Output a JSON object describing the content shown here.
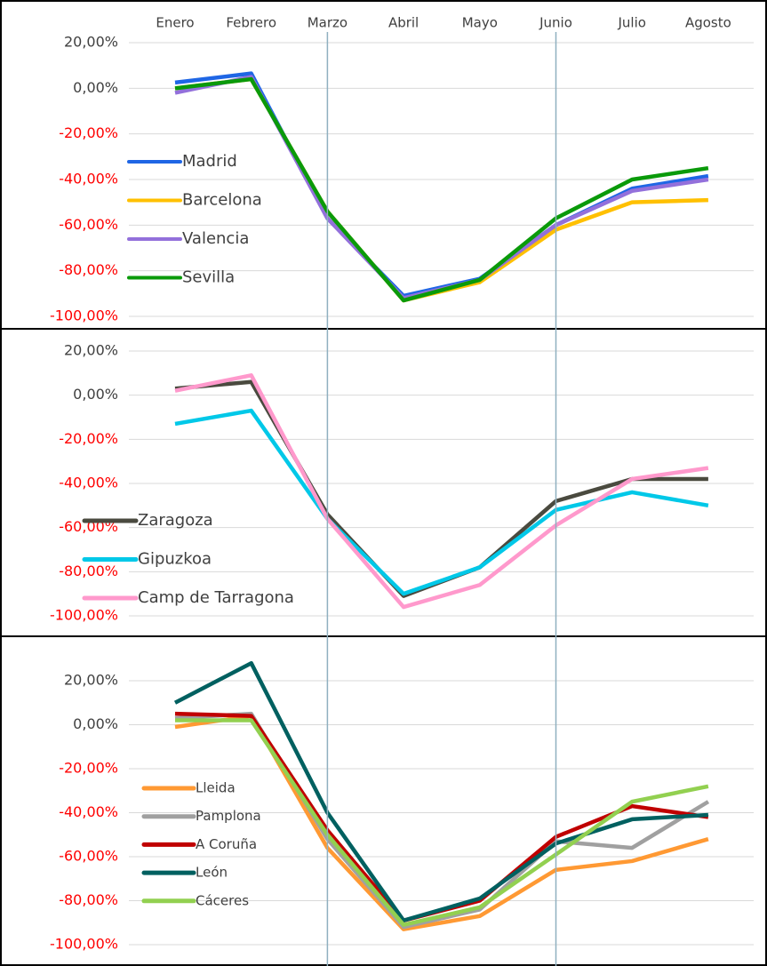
{
  "chart_data": [
    {
      "type": "line",
      "categories": [
        "Enero",
        "Febrero",
        "Marzo",
        "Abril",
        "Mayo",
        "Junio",
        "Julio",
        "Agosto"
      ],
      "ylim": [
        -100,
        20
      ],
      "yticks": [
        {
          "value": 20,
          "label": "20,00%"
        },
        {
          "value": 0,
          "label": "0,00%"
        },
        {
          "value": -20,
          "label": "-20,00%"
        },
        {
          "value": -40,
          "label": "-40,00%"
        },
        {
          "value": -60,
          "label": "-60,00%"
        },
        {
          "value": -80,
          "label": "-80,00%"
        },
        {
          "value": -100,
          "label": "-100,00%"
        }
      ],
      "grid": true,
      "negative_tick_color": "#ff0000",
      "vline_categories": [
        2,
        5
      ],
      "vline_color": "#8fb0c0",
      "series": [
        {
          "name": "Madrid",
          "color": "#1f66e5",
          "values": [
            2.5,
            6.5,
            -57,
            -91,
            -83.5,
            -60,
            -44,
            -38.5
          ]
        },
        {
          "name": "Barcelona",
          "color": "#ffc000",
          "values": [
            0,
            4,
            -54,
            -93,
            -85,
            -62,
            -50,
            -49
          ]
        },
        {
          "name": "Valencia",
          "color": "#9370db",
          "values": [
            -2,
            5,
            -57,
            -92,
            -84,
            -60,
            -45,
            -40
          ]
        },
        {
          "name": "Sevilla",
          "color": "#0a9a0a",
          "values": [
            0,
            4,
            -54,
            -93,
            -84,
            -57,
            -40,
            -35
          ]
        }
      ]
    },
    {
      "type": "line",
      "ylim": [
        -100,
        20
      ],
      "yticks": [
        {
          "value": 20,
          "label": "20,00%"
        },
        {
          "value": 0,
          "label": "0,00%"
        },
        {
          "value": -20,
          "label": "-20,00%"
        },
        {
          "value": -40,
          "label": "-40,00%"
        },
        {
          "value": -60,
          "label": "-60,00%"
        },
        {
          "value": -80,
          "label": "-80,00%"
        },
        {
          "value": -100,
          "label": "-100,00%"
        }
      ],
      "grid": true,
      "negative_tick_color": "#ff0000",
      "series": [
        {
          "name": "Zaragoza",
          "color": "#4a4a3f",
          "values": [
            3,
            6,
            -54,
            -91,
            -78,
            -48,
            -38,
            -38
          ]
        },
        {
          "name": "Gipuzkoa",
          "color": "#00c8e8",
          "values": [
            -13,
            -7,
            -56,
            -90,
            -78,
            -52,
            -44,
            -50
          ]
        },
        {
          "name": "Camp de Tarragona",
          "color": "#ff99cc",
          "values": [
            2,
            9,
            -56,
            -96,
            -86,
            -59,
            -38,
            -33
          ]
        }
      ]
    },
    {
      "type": "line",
      "ylim": [
        -100,
        30
      ],
      "yticks": [
        {
          "value": 20,
          "label": "20,00%"
        },
        {
          "value": 0,
          "label": "0,00%"
        },
        {
          "value": -20,
          "label": "-20,00%"
        },
        {
          "value": -40,
          "label": "-40,00%"
        },
        {
          "value": -60,
          "label": "-60,00%"
        },
        {
          "value": -80,
          "label": "-80,00%"
        },
        {
          "value": -100,
          "label": "-100,00%"
        }
      ],
      "grid": true,
      "negative_tick_color": "#ff0000",
      "series": [
        {
          "name": "Lleida",
          "color": "#ff9933",
          "values": [
            -1,
            4,
            -56,
            -93,
            -87,
            -66,
            -62,
            -52
          ]
        },
        {
          "name": "Pamplona",
          "color": "#a0a0a0",
          "values": [
            3,
            5,
            -52,
            -92,
            -84,
            -53,
            -56,
            -35
          ]
        },
        {
          "name": "A Coruña",
          "color": "#c00000",
          "values": [
            5,
            4,
            -48,
            -89,
            -80,
            -51,
            -37,
            -42
          ]
        },
        {
          "name": "León",
          "color": "#006060",
          "values": [
            10,
            28,
            -40,
            -89,
            -79,
            -54,
            -43,
            -41
          ]
        },
        {
          "name": "Cáceres",
          "color": "#92d050",
          "values": [
            2,
            2,
            -50,
            -91,
            -83,
            -59,
            -35,
            -28
          ]
        }
      ]
    }
  ]
}
